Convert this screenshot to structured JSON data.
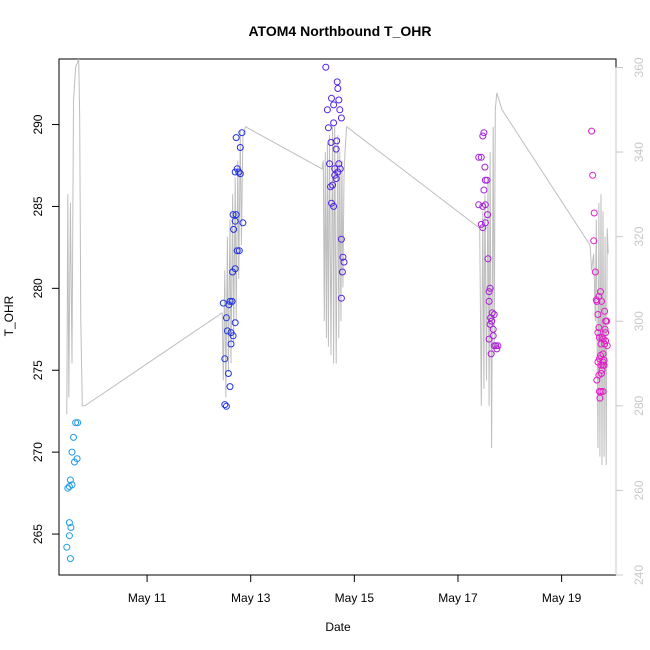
{
  "chart_data": {
    "type": "scatter",
    "title": "ATOM4 Northbound T_OHR",
    "xlabel": "Date",
    "ylabel": "T_OHR",
    "ylabel_right": "",
    "x_unit": "day-of-May",
    "xlim": [
      9.3,
      20.05
    ],
    "ylim": [
      262.5,
      294.0
    ],
    "ylim_right": [
      240,
      362
    ],
    "x_ticks": [
      11,
      13,
      15,
      17,
      19
    ],
    "x_tick_labels": [
      "May 11",
      "May 13",
      "May 15",
      "May 17",
      "May 19"
    ],
    "y_ticks": [
      265,
      270,
      275,
      280,
      285,
      290
    ],
    "y_right_ticks": [
      240,
      260,
      280,
      300,
      320,
      340,
      360
    ],
    "grid": false,
    "colors": {
      "axis": "#000000",
      "axis_right": "#c8c8c8",
      "line_series": "#bebebe",
      "point_gradient": [
        "#1ea0e6",
        "#1e28e6",
        "#8a1ee6",
        "#e61ec8"
      ]
    },
    "series": [
      {
        "type": "points",
        "points": [
          [
            9.47,
            267.8
          ],
          [
            9.5,
            267.9
          ],
          [
            9.52,
            268.3
          ],
          [
            9.5,
            265.7
          ],
          [
            9.53,
            265.4
          ],
          [
            9.45,
            264.2
          ],
          [
            9.5,
            264.9
          ],
          [
            9.52,
            263.5
          ],
          [
            9.55,
            268.0
          ],
          [
            9.6,
            269.4
          ],
          [
            9.55,
            270.0
          ],
          [
            9.65,
            269.6
          ],
          [
            9.58,
            270.9
          ],
          [
            9.62,
            271.8
          ],
          [
            9.66,
            271.8
          ],
          [
            12.47,
            279.1
          ],
          [
            12.5,
            275.7
          ],
          [
            12.53,
            278.2
          ],
          [
            12.5,
            272.9
          ],
          [
            12.53,
            272.8
          ],
          [
            12.57,
            274.8
          ],
          [
            12.6,
            274.0
          ],
          [
            12.55,
            277.4
          ],
          [
            12.58,
            279.0
          ],
          [
            12.62,
            277.3
          ],
          [
            12.6,
            279.2
          ],
          [
            12.64,
            279.2
          ],
          [
            12.62,
            276.6
          ],
          [
            12.66,
            277.1
          ],
          [
            12.65,
            281.0
          ],
          [
            12.7,
            281.2
          ],
          [
            12.67,
            283.6
          ],
          [
            12.7,
            284.1
          ],
          [
            12.72,
            284.5
          ],
          [
            12.66,
            284.5
          ],
          [
            12.74,
            282.3
          ],
          [
            12.78,
            282.3
          ],
          [
            12.7,
            287.1
          ],
          [
            12.74,
            287.3
          ],
          [
            12.77,
            287.1
          ],
          [
            12.8,
            287.0
          ],
          [
            12.72,
            289.2
          ],
          [
            12.8,
            288.6
          ],
          [
            12.83,
            289.5
          ],
          [
            12.85,
            284.0
          ],
          [
            12.7,
            277.9
          ],
          [
            14.45,
            293.5
          ],
          [
            14.48,
            290.9
          ],
          [
            14.5,
            289.8
          ],
          [
            14.52,
            287.6
          ],
          [
            14.55,
            288.9
          ],
          [
            14.56,
            291.6
          ],
          [
            14.6,
            291.2
          ],
          [
            14.58,
            286.3
          ],
          [
            14.54,
            286.2
          ],
          [
            14.56,
            285.2
          ],
          [
            14.6,
            285.0
          ],
          [
            14.62,
            287.3
          ],
          [
            14.65,
            288.5
          ],
          [
            14.66,
            289.0
          ],
          [
            14.68,
            287.1
          ],
          [
            14.7,
            287.6
          ],
          [
            14.73,
            287.3
          ],
          [
            14.65,
            286.7
          ],
          [
            14.72,
            290.9
          ],
          [
            14.75,
            290.4
          ],
          [
            14.67,
            292.6
          ],
          [
            14.68,
            292.2
          ],
          [
            14.7,
            291.5
          ],
          [
            14.6,
            290.1
          ],
          [
            14.75,
            283.0
          ],
          [
            14.78,
            281.9
          ],
          [
            14.8,
            281.6
          ],
          [
            14.77,
            281.0
          ],
          [
            14.75,
            279.4
          ],
          [
            14.62,
            286.9
          ],
          [
            17.4,
            288.0
          ],
          [
            17.45,
            288.0
          ],
          [
            17.48,
            289.3
          ],
          [
            17.5,
            289.5
          ],
          [
            17.52,
            287.4
          ],
          [
            17.53,
            286.6
          ],
          [
            17.56,
            286.6
          ],
          [
            17.5,
            286.0
          ],
          [
            17.48,
            285.0
          ],
          [
            17.53,
            285.1
          ],
          [
            17.4,
            285.1
          ],
          [
            17.45,
            283.9
          ],
          [
            17.48,
            283.7
          ],
          [
            17.53,
            284.0
          ],
          [
            17.57,
            284.5
          ],
          [
            17.58,
            281.8
          ],
          [
            17.6,
            279.8
          ],
          [
            17.62,
            280.0
          ],
          [
            17.6,
            279.2
          ],
          [
            17.63,
            278.2
          ],
          [
            17.66,
            278.5
          ],
          [
            17.7,
            278.4
          ],
          [
            17.65,
            278.0
          ],
          [
            17.62,
            277.8
          ],
          [
            17.68,
            277.5
          ],
          [
            17.6,
            276.9
          ],
          [
            17.64,
            276.0
          ],
          [
            17.68,
            277.1
          ],
          [
            17.7,
            276.5
          ],
          [
            17.73,
            276.5
          ],
          [
            17.75,
            276.3
          ],
          [
            17.77,
            276.5
          ],
          [
            19.58,
            289.6
          ],
          [
            19.6,
            286.9
          ],
          [
            19.63,
            284.6
          ],
          [
            19.62,
            282.9
          ],
          [
            19.65,
            281.0
          ],
          [
            19.67,
            279.3
          ],
          [
            19.7,
            278.4
          ],
          [
            19.72,
            279.5
          ],
          [
            19.68,
            279.2
          ],
          [
            19.75,
            279.8
          ],
          [
            19.77,
            279.2
          ],
          [
            19.72,
            277.6
          ],
          [
            19.7,
            277.3
          ],
          [
            19.73,
            277.0
          ],
          [
            19.76,
            276.6
          ],
          [
            19.8,
            276.9
          ],
          [
            19.83,
            276.6
          ],
          [
            19.85,
            277.3
          ],
          [
            19.78,
            277.0
          ],
          [
            19.8,
            276.0
          ],
          [
            19.75,
            275.9
          ],
          [
            19.7,
            275.5
          ],
          [
            19.73,
            275.7
          ],
          [
            19.76,
            275.3
          ],
          [
            19.8,
            275.3
          ],
          [
            19.82,
            275.3
          ],
          [
            19.78,
            275.0
          ],
          [
            19.72,
            274.7
          ],
          [
            19.68,
            274.4
          ],
          [
            19.73,
            273.7
          ],
          [
            19.76,
            273.7
          ],
          [
            19.8,
            273.7
          ],
          [
            19.74,
            273.3
          ],
          [
            19.8,
            275.5
          ],
          [
            19.82,
            275.6
          ],
          [
            19.77,
            274.8
          ],
          [
            19.85,
            276.8
          ],
          [
            19.88,
            276.5
          ],
          [
            19.85,
            278.0
          ],
          [
            19.83,
            278.6
          ],
          [
            19.87,
            278.0
          ],
          [
            19.84,
            277.5
          ]
        ]
      },
      {
        "type": "line",
        "axis": "right",
        "points": [
          [
            9.45,
            278
          ],
          [
            9.47,
            330
          ],
          [
            9.49,
            282
          ],
          [
            9.52,
            328
          ],
          [
            9.55,
            290
          ],
          [
            9.58,
            352
          ],
          [
            9.62,
            360
          ],
          [
            9.68,
            362
          ],
          [
            9.7,
            348
          ],
          [
            9.72,
            300
          ],
          [
            9.75,
            280
          ],
          [
            9.8,
            280
          ],
          [
            12.45,
            302
          ],
          [
            12.47,
            286
          ],
          [
            12.5,
            312
          ],
          [
            12.52,
            282
          ],
          [
            12.55,
            320
          ],
          [
            12.57,
            288
          ],
          [
            12.6,
            324
          ],
          [
            12.62,
            290
          ],
          [
            12.65,
            330
          ],
          [
            12.67,
            295
          ],
          [
            12.7,
            334
          ],
          [
            12.72,
            300
          ],
          [
            12.75,
            338
          ],
          [
            12.77,
            310
          ],
          [
            12.8,
            345
          ],
          [
            12.82,
            318
          ],
          [
            12.85,
            344
          ],
          [
            12.9,
            346
          ],
          [
            14.38,
            336
          ],
          [
            14.4,
            338
          ],
          [
            14.42,
            300
          ],
          [
            14.44,
            340
          ],
          [
            14.46,
            296
          ],
          [
            14.48,
            342
          ],
          [
            14.5,
            294
          ],
          [
            14.52,
            344
          ],
          [
            14.55,
            292
          ],
          [
            14.58,
            346
          ],
          [
            14.6,
            290
          ],
          [
            14.62,
            346
          ],
          [
            14.65,
            290
          ],
          [
            14.68,
            344
          ],
          [
            14.7,
            296
          ],
          [
            14.72,
            340
          ],
          [
            14.74,
            300
          ],
          [
            14.76,
            338
          ],
          [
            14.78,
            308
          ],
          [
            14.8,
            334
          ],
          [
            14.82,
            340
          ],
          [
            14.85,
            346
          ],
          [
            17.42,
            322
          ],
          [
            17.45,
            280
          ],
          [
            17.48,
            326
          ],
          [
            17.5,
            284
          ],
          [
            17.52,
            330
          ],
          [
            17.55,
            286
          ],
          [
            17.58,
            334
          ],
          [
            17.6,
            280
          ],
          [
            17.62,
            340
          ],
          [
            17.65,
            270
          ],
          [
            17.68,
            346
          ],
          [
            17.7,
            292
          ],
          [
            17.72,
            350
          ],
          [
            17.75,
            354
          ],
          [
            17.8,
            352
          ],
          [
            17.85,
            350
          ],
          [
            19.55,
            318
          ],
          [
            19.58,
            312
          ],
          [
            19.62,
            316
          ],
          [
            19.65,
            300
          ],
          [
            19.67,
            324
          ],
          [
            19.7,
            270
          ],
          [
            19.72,
            328
          ],
          [
            19.74,
            268
          ],
          [
            19.76,
            330
          ],
          [
            19.78,
            266
          ],
          [
            19.8,
            326
          ],
          [
            19.82,
            268
          ],
          [
            19.84,
            320
          ],
          [
            19.86,
            266
          ],
          [
            19.88,
            322
          ],
          [
            19.9,
            316
          ]
        ]
      }
    ]
  }
}
